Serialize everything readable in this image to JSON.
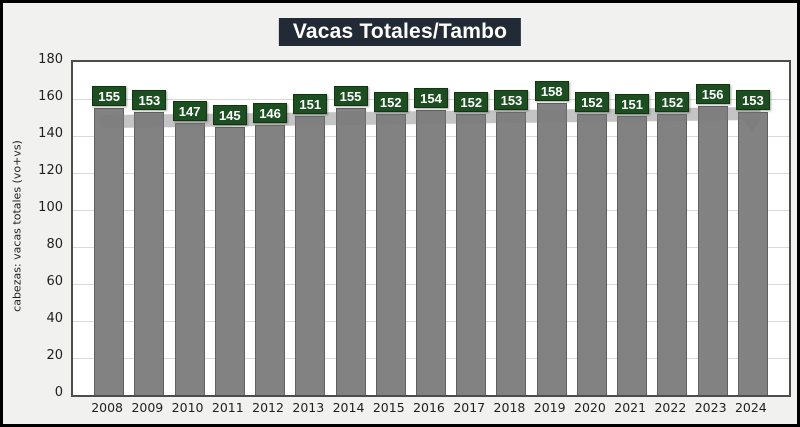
{
  "title": "Vacas Totales/Tambo",
  "colors": {
    "background": "#f1f1ef",
    "outer_border": "#000000",
    "title_bg": "#222B35",
    "title_text": "#ffffff",
    "bar_fill": "#828282",
    "bar_border": "#606060",
    "data_label_bg": "#1D4E22",
    "data_label_text": "#ffffff",
    "trend_band": "rgba(124,124,124,0.45)",
    "plot_border": "#4d4d4d",
    "gridline": "#d9d9d9",
    "axis_text": "#1f1f1f"
  },
  "chart_data": {
    "type": "bar",
    "title": "Vacas Totales/Tambo",
    "categories": [
      "2008",
      "2009",
      "2010",
      "2011",
      "2012",
      "2013",
      "2014",
      "2015",
      "2016",
      "2017",
      "2018",
      "2019",
      "2020",
      "2021",
      "2022",
      "2023",
      "2024"
    ],
    "values": [
      155,
      153,
      147,
      145,
      146,
      151,
      155,
      152,
      154,
      152,
      153,
      158,
      152,
      151,
      152,
      156,
      153
    ],
    "data_labels": [
      "155",
      "153",
      "147",
      "145",
      "146",
      "151",
      "155",
      "152",
      "154",
      "152",
      "153",
      "158",
      "152",
      "151",
      "152",
      "156",
      "153"
    ],
    "xlabel": "",
    "ylabel": "cabezas: vacas totales (vo+vs)",
    "ylim": [
      0,
      180
    ],
    "ytick_step": 20,
    "yticks": [
      180,
      160,
      140,
      120,
      100,
      80,
      60,
      40,
      20,
      0
    ],
    "grid": "horizontal",
    "legend": "none",
    "trend_band": {
      "description": "translucent gray band across bars with small arrow tail before 2024",
      "start_value": 147.6,
      "end_value": 152
    }
  }
}
